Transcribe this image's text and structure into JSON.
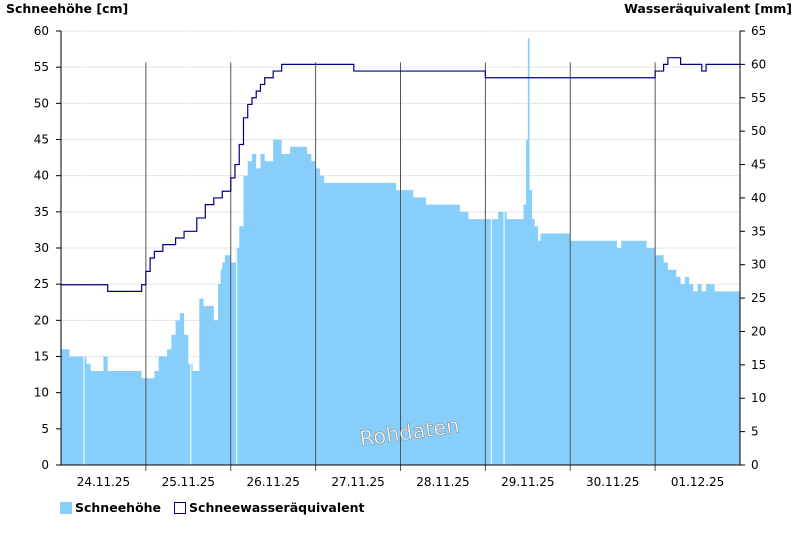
{
  "chart_data": {
    "type": "area",
    "y_left_label": "Schneehöhe [cm]",
    "y_right_label": "Wasseräquivalent [mm]",
    "y_left_lim": [
      0,
      60
    ],
    "y_right_lim": [
      0,
      65
    ],
    "y_left_ticks": [
      0,
      5,
      10,
      15,
      20,
      25,
      30,
      35,
      40,
      45,
      50,
      55,
      60
    ],
    "y_right_ticks": [
      0,
      5,
      10,
      15,
      20,
      25,
      30,
      35,
      40,
      45,
      50,
      55,
      60,
      65
    ],
    "x_range_days": [
      0,
      8
    ],
    "x_tick_labels": [
      "24.11.25",
      "25.11.25",
      "26.11.25",
      "27.11.25",
      "28.11.25",
      "29.11.25",
      "30.11.25",
      "01.12.25"
    ],
    "grid": true,
    "watermark": "Rohdaten",
    "colors": {
      "snow_depth": "#87cefa",
      "swe": "#000080",
      "vlines": "#555555"
    },
    "series": [
      {
        "name": "Schneehöhe",
        "type": "area",
        "axis": "left",
        "x": [
          0,
          0.08,
          0.1,
          0.13,
          0.25,
          0.3,
          0.35,
          0.4,
          0.45,
          0.5,
          0.55,
          0.6,
          0.7,
          0.85,
          0.95,
          1.0,
          1.05,
          1.1,
          1.15,
          1.2,
          1.25,
          1.3,
          1.35,
          1.4,
          1.45,
          1.5,
          1.55,
          1.58,
          1.63,
          1.68,
          1.7,
          1.75,
          1.8,
          1.85,
          1.88,
          1.9,
          1.93,
          1.95,
          2.0,
          2.03,
          2.06,
          2.1,
          2.15,
          2.2,
          2.25,
          2.3,
          2.35,
          2.4,
          2.5,
          2.6,
          2.7,
          2.8,
          2.9,
          2.95,
          3.0,
          3.05,
          3.1,
          3.2,
          3.3,
          3.5,
          3.7,
          3.85,
          3.95,
          4.05,
          4.15,
          4.2,
          4.3,
          4.4,
          4.5,
          4.6,
          4.7,
          4.8,
          4.9,
          4.95,
          5.0,
          5.05,
          5.1,
          5.15,
          5.2,
          5.25,
          5.3,
          5.35,
          5.4,
          5.45,
          5.48,
          5.5,
          5.52,
          5.55,
          5.58,
          5.62,
          5.65,
          5.7,
          5.8,
          5.95,
          6.0,
          6.3,
          6.45,
          6.5,
          6.55,
          6.6,
          6.7,
          6.8,
          6.9,
          7.0,
          7.05,
          7.1,
          7.15,
          7.2,
          7.25,
          7.3,
          7.35,
          7.4,
          7.45,
          7.5,
          7.55,
          7.6,
          7.7,
          7.8,
          7.9,
          8.0
        ],
        "values": [
          16,
          16,
          15,
          15,
          15,
          14,
          13,
          13,
          13,
          15,
          13,
          13,
          13,
          13,
          12,
          12,
          12,
          13,
          15,
          15,
          16,
          18,
          20,
          21,
          18,
          14,
          13,
          13,
          23,
          22,
          22,
          22,
          20,
          25,
          27,
          28,
          29,
          29,
          28,
          28,
          30,
          33,
          40,
          42,
          43,
          41,
          43,
          42,
          45,
          43,
          44,
          44,
          43,
          42,
          41,
          40,
          39,
          39,
          39,
          39,
          39,
          39,
          38,
          38,
          37,
          37,
          36,
          36,
          36,
          36,
          35,
          34,
          34,
          34,
          34,
          34,
          34,
          35,
          35,
          34,
          34,
          34,
          34,
          36,
          45,
          59,
          38,
          34,
          33,
          31,
          32,
          32,
          32,
          32,
          31,
          31,
          31,
          31,
          30,
          31,
          31,
          31,
          30,
          29,
          29,
          28,
          27,
          27,
          26,
          25,
          26,
          25,
          24,
          25,
          24,
          25,
          24,
          24,
          24,
          24
        ]
      },
      {
        "name": "Schneewasseräquivalent",
        "type": "step-line",
        "axis": "right",
        "x": [
          0,
          0.5,
          0.55,
          0.9,
          0.95,
          1.0,
          1.05,
          1.1,
          1.2,
          1.35,
          1.45,
          1.6,
          1.7,
          1.8,
          1.9,
          2.0,
          2.05,
          2.1,
          2.15,
          2.2,
          2.25,
          2.3,
          2.35,
          2.4,
          2.5,
          2.6,
          2.7,
          2.8,
          2.9,
          3.0,
          3.4,
          3.45,
          3.5,
          4.0,
          4.5,
          5.0,
          5.2,
          5.5,
          5.9,
          6.0,
          6.8,
          7.0,
          7.1,
          7.15,
          7.3,
          7.5,
          7.55,
          7.6,
          8.0
        ],
        "values": [
          27,
          27,
          26,
          26,
          27,
          29,
          31,
          32,
          33,
          34,
          35,
          37,
          39,
          40,
          41,
          43,
          45,
          48,
          52,
          54,
          55,
          56,
          57,
          58,
          59,
          60,
          60,
          60,
          60,
          60,
          60,
          59,
          59,
          59,
          59,
          58,
          58,
          58,
          58,
          58,
          58,
          59,
          60,
          61,
          60,
          60,
          59,
          60,
          60
        ]
      }
    ]
  },
  "legend": {
    "snow_depth_label": "Schneehöhe",
    "swe_label": "Schneewasseräquivalent"
  }
}
